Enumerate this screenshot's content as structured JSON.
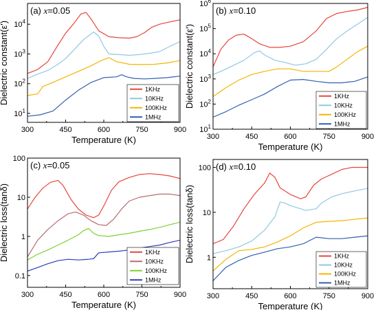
{
  "chart_data": [
    {
      "type": "line",
      "panel_label": "(a)",
      "panel_var": "x",
      "panel_val": "=0.05",
      "xlabel": "Temperature (K)",
      "ylabel": "Dielectric constant(ε')",
      "xlim": [
        300,
        900
      ],
      "ylim": [
        5,
        50000
      ],
      "yscale": "log",
      "xticks": [
        "300",
        "450",
        "600",
        "750",
        "900"
      ],
      "yticks": [
        {
          "base": "10",
          "exp": "1",
          "value": 10
        },
        {
          "base": "10",
          "exp": "2",
          "value": 100
        },
        {
          "base": "10",
          "exp": "3",
          "value": 1000
        },
        {
          "base": "10",
          "exp": "4",
          "value": 10000
        }
      ],
      "legend_position": "bottom-right",
      "series": [
        {
          "name": "1KHz",
          "color": "#e8453c",
          "x": [
            300,
            340,
            380,
            420,
            450,
            480,
            510,
            530,
            550,
            580,
            620,
            660,
            700,
            730,
            760,
            790,
            820,
            860,
            900
          ],
          "y": [
            220,
            300,
            550,
            2000,
            5000,
            10000,
            22000,
            25000,
            15000,
            6000,
            3800,
            3500,
            3400,
            3800,
            5200,
            8000,
            10000,
            12000,
            14000
          ]
        },
        {
          "name": "10KHz",
          "color": "#8ec9e0",
          "x": [
            300,
            340,
            380,
            420,
            450,
            480,
            520,
            560,
            580,
            600,
            620,
            660,
            700,
            740,
            780,
            820,
            860,
            900
          ],
          "y": [
            150,
            210,
            280,
            450,
            700,
            1300,
            3000,
            5500,
            4000,
            1800,
            1000,
            950,
            900,
            950,
            1050,
            1200,
            1800,
            2600
          ]
        },
        {
          "name": "100KHz",
          "color": "#f5b400",
          "x": [
            300,
            340,
            360,
            400,
            450,
            500,
            550,
            590,
            620,
            650,
            700,
            750,
            800,
            850,
            900
          ],
          "y": [
            40,
            45,
            80,
            110,
            170,
            260,
            400,
            600,
            750,
            550,
            450,
            440,
            450,
            500,
            600
          ]
        },
        {
          "name": "1MHz",
          "color": "#2f5fb0",
          "x": [
            300,
            350,
            400,
            450,
            500,
            550,
            600,
            650,
            670,
            690,
            720,
            760,
            800,
            850,
            900
          ],
          "y": [
            8,
            9,
            12,
            28,
            60,
            110,
            160,
            170,
            200,
            170,
            150,
            145,
            150,
            160,
            180
          ]
        }
      ]
    },
    {
      "type": "line",
      "panel_label": "(b)",
      "panel_var": "x",
      "panel_val": "=0.10",
      "xlabel": "Temperature (K)",
      "ylabel": "Dielectric constant(ε')",
      "xlim": [
        300,
        900
      ],
      "ylim": [
        10,
        1000000
      ],
      "yscale": "log",
      "xticks": [
        "300",
        "450",
        "600",
        "750",
        "900"
      ],
      "yticks": [
        {
          "base": "10",
          "exp": "1",
          "value": 10
        },
        {
          "base": "10",
          "exp": "2",
          "value": 100
        },
        {
          "base": "10",
          "exp": "3",
          "value": 1000
        },
        {
          "base": "10",
          "exp": "4",
          "value": 10000
        },
        {
          "base": "10",
          "exp": "5",
          "value": 100000
        },
        {
          "base": "10",
          "exp": "6",
          "value": 1000000
        }
      ],
      "legend_position": "bottom-right",
      "series": [
        {
          "name": "1KHz",
          "color": "#e8453c",
          "x": [
            300,
            330,
            360,
            390,
            420,
            450,
            480,
            520,
            560,
            600,
            650,
            700,
            740,
            780,
            820,
            860,
            900
          ],
          "y": [
            3000,
            15000,
            35000,
            55000,
            60000,
            40000,
            25000,
            18000,
            18000,
            20000,
            30000,
            80000,
            250000,
            400000,
            480000,
            550000,
            700000
          ]
        },
        {
          "name": "10KHz",
          "color": "#8ec9e0",
          "x": [
            300,
            340,
            380,
            420,
            460,
            480,
            500,
            540,
            580,
            620,
            660,
            700,
            740,
            780,
            820,
            860,
            900
          ],
          "y": [
            1500,
            2200,
            3500,
            5500,
            11000,
            13000,
            9000,
            5500,
            4500,
            3500,
            4000,
            6000,
            15000,
            40000,
            80000,
            150000,
            280000
          ]
        },
        {
          "name": "100KHz",
          "color": "#f5b400",
          "x": [
            300,
            350,
            400,
            450,
            500,
            550,
            600,
            650,
            700,
            750,
            780,
            820,
            860,
            900
          ],
          "y": [
            200,
            450,
            900,
            1500,
            2000,
            2500,
            2500,
            2000,
            2000,
            2000,
            3000,
            6000,
            12000,
            20000
          ]
        },
        {
          "name": "1MHz",
          "color": "#2f5fb0",
          "x": [
            300,
            350,
            400,
            450,
            500,
            550,
            600,
            650,
            700,
            750,
            800,
            850,
            900
          ],
          "y": [
            30,
            50,
            90,
            150,
            250,
            500,
            900,
            950,
            800,
            700,
            700,
            800,
            1200
          ]
        }
      ]
    },
    {
      "type": "line",
      "panel_label": "(c)",
      "panel_var": "x",
      "panel_val": "=0.05",
      "xlabel": "Temperature (K)",
      "ylabel": "Dielectric loss(tanδ)",
      "xlim": [
        300,
        900
      ],
      "ylim": [
        0.05,
        100
      ],
      "yscale": "log",
      "xticks": [
        "300",
        "450",
        "600",
        "750",
        "900"
      ],
      "yticks": [
        {
          "base": "0.1",
          "exp": "",
          "value": 0.1
        },
        {
          "base": "1",
          "exp": "",
          "value": 1
        },
        {
          "base": "10",
          "exp": "",
          "value": 10
        },
        {
          "base": "100",
          "exp": "",
          "value": 100
        }
      ],
      "legend_position": "bottom-right",
      "series": [
        {
          "name": "1KHz",
          "color": "#e8453c",
          "x": [
            300,
            330,
            360,
            390,
            420,
            440,
            470,
            500,
            530,
            560,
            580,
            600,
            630,
            660,
            700,
            740,
            780,
            820,
            860,
            900
          ],
          "y": [
            5,
            10,
            17,
            24,
            27,
            20,
            9,
            5,
            3.5,
            3,
            3.5,
            6,
            15,
            25,
            32,
            38,
            40,
            38,
            35,
            30
          ]
        },
        {
          "name": "10KHz",
          "color": "#b76b70",
          "x": [
            300,
            340,
            380,
            420,
            460,
            490,
            520,
            550,
            580,
            610,
            640,
            670,
            700,
            740,
            780,
            820,
            860,
            900
          ],
          "y": [
            0.3,
            0.8,
            1.5,
            2.5,
            3.8,
            4.2,
            3.5,
            2.5,
            2.0,
            1.9,
            2.8,
            5,
            8,
            10,
            11,
            12,
            12,
            11
          ]
        },
        {
          "name": "100KHz",
          "color": "#7fd02f",
          "x": [
            300,
            340,
            380,
            420,
            460,
            500,
            520,
            540,
            560,
            580,
            620,
            660,
            700,
            740,
            780,
            820,
            860,
            900
          ],
          "y": [
            0.25,
            0.35,
            0.45,
            0.6,
            0.8,
            1.1,
            1.4,
            1.6,
            1.2,
            1.05,
            1.0,
            1.1,
            1.2,
            1.35,
            1.5,
            1.7,
            2.0,
            2.3
          ]
        },
        {
          "name": "1MHz",
          "color": "#2a3fb8",
          "x": [
            300,
            340,
            380,
            420,
            460,
            500,
            540,
            560,
            580,
            620,
            660,
            700,
            740,
            780,
            820,
            860,
            900
          ],
          "y": [
            0.13,
            0.16,
            0.2,
            0.24,
            0.26,
            0.25,
            0.26,
            0.27,
            0.38,
            0.4,
            0.42,
            0.45,
            0.5,
            0.55,
            0.6,
            0.7,
            0.8
          ]
        }
      ]
    },
    {
      "type": "line",
      "panel_label": "(d)",
      "panel_var": "x",
      "panel_val": "=0.10",
      "xlabel": "Temperature (K)",
      "ylabel": "Dielectric loss(tanδ)",
      "xlim": [
        300,
        900
      ],
      "ylim": [
        0.2,
        150
      ],
      "yscale": "log",
      "xticks": [
        "300",
        "450",
        "600",
        "750",
        "900"
      ],
      "yticks": [
        {
          "base": "1",
          "exp": "",
          "value": 1
        },
        {
          "base": "10",
          "exp": "",
          "value": 10
        },
        {
          "base": "100",
          "exp": "",
          "value": 100
        }
      ],
      "legend_position": "bottom-right",
      "series": [
        {
          "name": "1KHz",
          "color": "#e8453c",
          "x": [
            300,
            340,
            380,
            420,
            460,
            500,
            520,
            540,
            560,
            600,
            640,
            660,
            690,
            720,
            760,
            800,
            840,
            880,
            900
          ],
          "y": [
            2,
            2.5,
            5,
            12,
            25,
            45,
            75,
            60,
            35,
            25,
            20,
            22,
            40,
            55,
            70,
            90,
            100,
            100,
            100
          ]
        },
        {
          "name": "10KHz",
          "color": "#8ec9e0",
          "x": [
            300,
            350,
            400,
            450,
            500,
            540,
            560,
            580,
            600,
            640,
            660,
            700,
            720,
            760,
            800,
            850,
            900
          ],
          "y": [
            1.2,
            1.4,
            1.7,
            2.3,
            4,
            8,
            17,
            16,
            14,
            12,
            11,
            12,
            16,
            22,
            26,
            30,
            34
          ]
        },
        {
          "name": "100KHz",
          "color": "#f5b400",
          "x": [
            300,
            350,
            400,
            450,
            500,
            550,
            600,
            650,
            700,
            750,
            800,
            850,
            900
          ],
          "y": [
            0.5,
            0.9,
            1.4,
            1.5,
            1.7,
            2.2,
            3.0,
            4.5,
            6,
            6.3,
            6.5,
            7,
            7.5
          ]
        },
        {
          "name": "1MHz",
          "color": "#2f5fb0",
          "x": [
            300,
            350,
            400,
            450,
            500,
            550,
            600,
            650,
            700,
            750,
            800,
            850,
            900
          ],
          "y": [
            0.3,
            0.6,
            0.85,
            1.1,
            1.3,
            1.55,
            1.7,
            2.0,
            2.8,
            2.6,
            2.6,
            2.8,
            3.0
          ]
        }
      ]
    }
  ]
}
